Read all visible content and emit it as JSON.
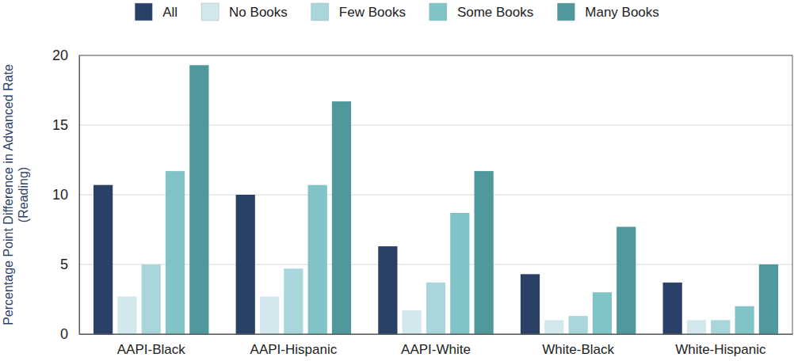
{
  "chart_data": {
    "type": "bar",
    "y_label": [
      "Percentage Point Difference in Advanced Rate",
      "(Reading)"
    ],
    "categories": [
      "AAPI-Black",
      "AAPI-Hispanic",
      "AAPI-White",
      "White-Black",
      "White-Hispanic"
    ],
    "series": [
      {
        "name": "All",
        "color": "#2a4066",
        "values": [
          10.7,
          10.0,
          6.3,
          4.3,
          3.7
        ]
      },
      {
        "name": "No Books",
        "color": "#d2e8ec",
        "values": [
          2.7,
          2.7,
          1.7,
          1.0,
          1.0
        ]
      },
      {
        "name": "Few Books",
        "color": "#a9d6da",
        "values": [
          5.0,
          4.7,
          3.7,
          1.3,
          1.0
        ]
      },
      {
        "name": "Some Books",
        "color": "#80c4c8",
        "values": [
          11.7,
          10.7,
          8.7,
          3.0,
          2.0
        ]
      },
      {
        "name": "Many Books",
        "color": "#4f999c",
        "values": [
          19.3,
          16.7,
          11.7,
          7.7,
          5.0
        ]
      }
    ],
    "ylim": [
      0,
      20
    ],
    "yticks": [
      0,
      5,
      10,
      15,
      20
    ],
    "grid": true,
    "legend": "top"
  }
}
